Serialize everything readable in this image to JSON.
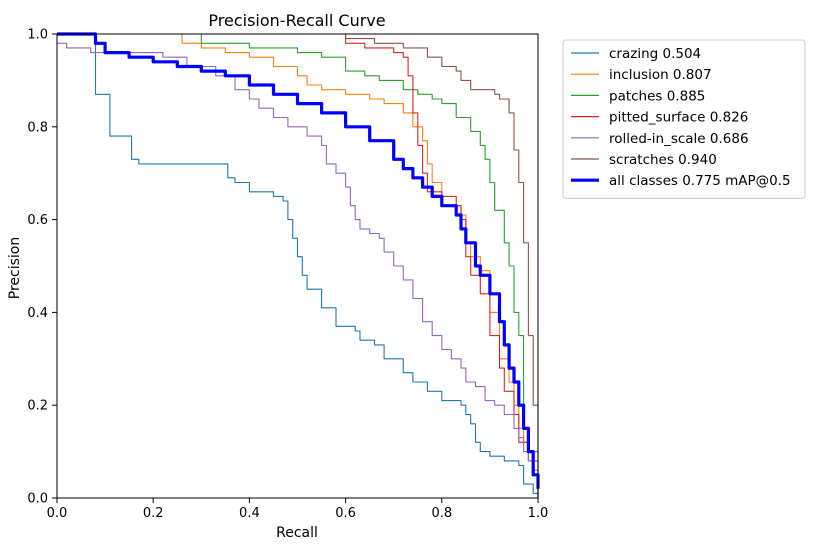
{
  "chart_data": {
    "type": "line",
    "title": "Precision-Recall Curve",
    "xlabel": "Recall",
    "ylabel": "Precision",
    "xlim": [
      0,
      1
    ],
    "ylim": [
      0,
      1
    ],
    "xticks": [
      "0.0",
      "0.2",
      "0.4",
      "0.6",
      "0.8",
      "1.0"
    ],
    "yticks": [
      "0.0",
      "0.2",
      "0.4",
      "0.6",
      "0.8",
      "1.0"
    ],
    "grid": false,
    "legend_position": "outside-top-right",
    "series": [
      {
        "name": "crazing",
        "legend": "crazing 0.504",
        "color": "#1f77b4",
        "bold": false,
        "points": [
          [
            0,
            1
          ],
          [
            0.07,
            1
          ],
          [
            0.08,
            0.87
          ],
          [
            0.1,
            0.87
          ],
          [
            0.11,
            0.78
          ],
          [
            0.15,
            0.78
          ],
          [
            0.155,
            0.73
          ],
          [
            0.17,
            0.72
          ],
          [
            0.25,
            0.72
          ],
          [
            0.35,
            0.72
          ],
          [
            0.355,
            0.69
          ],
          [
            0.37,
            0.68
          ],
          [
            0.4,
            0.66
          ],
          [
            0.45,
            0.65
          ],
          [
            0.47,
            0.64
          ],
          [
            0.48,
            0.6
          ],
          [
            0.49,
            0.56
          ],
          [
            0.5,
            0.52
          ],
          [
            0.51,
            0.48
          ],
          [
            0.52,
            0.45
          ],
          [
            0.55,
            0.41
          ],
          [
            0.58,
            0.37
          ],
          [
            0.6,
            0.37
          ],
          [
            0.62,
            0.36
          ],
          [
            0.63,
            0.34
          ],
          [
            0.66,
            0.33
          ],
          [
            0.68,
            0.3
          ],
          [
            0.7,
            0.3
          ],
          [
            0.72,
            0.27
          ],
          [
            0.74,
            0.25
          ],
          [
            0.77,
            0.23
          ],
          [
            0.8,
            0.21
          ],
          [
            0.84,
            0.2
          ],
          [
            0.85,
            0.18
          ],
          [
            0.86,
            0.16
          ],
          [
            0.87,
            0.12
          ],
          [
            0.88,
            0.1
          ],
          [
            0.9,
            0.09
          ],
          [
            0.92,
            0.09
          ],
          [
            0.93,
            0.08
          ],
          [
            0.96,
            0.07
          ],
          [
            0.97,
            0.03
          ],
          [
            0.99,
            0.01
          ],
          [
            1.0,
            0
          ]
        ]
      },
      {
        "name": "inclusion",
        "legend": "inclusion 0.807",
        "color": "#ff7f0e",
        "bold": false,
        "points": [
          [
            0.25,
            1
          ],
          [
            0.26,
            0.98
          ],
          [
            0.3,
            0.97
          ],
          [
            0.35,
            0.96
          ],
          [
            0.4,
            0.95
          ],
          [
            0.45,
            0.93
          ],
          [
            0.5,
            0.91
          ],
          [
            0.52,
            0.89
          ],
          [
            0.55,
            0.88
          ],
          [
            0.6,
            0.87
          ],
          [
            0.65,
            0.86
          ],
          [
            0.68,
            0.85
          ],
          [
            0.72,
            0.83
          ],
          [
            0.74,
            0.8
          ],
          [
            0.76,
            0.77
          ],
          [
            0.77,
            0.72
          ],
          [
            0.78,
            0.68
          ],
          [
            0.8,
            0.63
          ],
          [
            0.84,
            0.61
          ],
          [
            0.85,
            0.55
          ],
          [
            0.86,
            0.52
          ],
          [
            0.88,
            0.49
          ],
          [
            0.9,
            0.4
          ],
          [
            0.92,
            0.3
          ],
          [
            0.94,
            0.25
          ],
          [
            0.95,
            0.2
          ],
          [
            0.96,
            0.15
          ],
          [
            0.97,
            0.12
          ],
          [
            0.98,
            0.08
          ],
          [
            1.0,
            0
          ]
        ]
      },
      {
        "name": "patches",
        "legend": "patches 0.885",
        "color": "#2ca02c",
        "bold": false,
        "points": [
          [
            0.19,
            1
          ],
          [
            0.27,
            1
          ],
          [
            0.3,
            0.98
          ],
          [
            0.4,
            0.97
          ],
          [
            0.45,
            0.97
          ],
          [
            0.5,
            0.96
          ],
          [
            0.55,
            0.95
          ],
          [
            0.6,
            0.92
          ],
          [
            0.64,
            0.91
          ],
          [
            0.67,
            0.9
          ],
          [
            0.72,
            0.88
          ],
          [
            0.75,
            0.87
          ],
          [
            0.78,
            0.86
          ],
          [
            0.8,
            0.85
          ],
          [
            0.83,
            0.82
          ],
          [
            0.86,
            0.79
          ],
          [
            0.88,
            0.76
          ],
          [
            0.89,
            0.73
          ],
          [
            0.9,
            0.68
          ],
          [
            0.91,
            0.62
          ],
          [
            0.93,
            0.55
          ],
          [
            0.94,
            0.5
          ],
          [
            0.95,
            0.4
          ],
          [
            0.96,
            0.35
          ],
          [
            0.97,
            0.15
          ],
          [
            0.98,
            0.1
          ],
          [
            1.0,
            0
          ]
        ]
      },
      {
        "name": "pitted_surface",
        "legend": "pitted_surface 0.826",
        "color": "#d62728",
        "bold": false,
        "points": [
          [
            0.26,
            1
          ],
          [
            0.55,
            1
          ],
          [
            0.6,
            0.98
          ],
          [
            0.64,
            0.97
          ],
          [
            0.7,
            0.96
          ],
          [
            0.72,
            0.95
          ],
          [
            0.73,
            0.91
          ],
          [
            0.74,
            0.83
          ],
          [
            0.75,
            0.76
          ],
          [
            0.76,
            0.7
          ],
          [
            0.77,
            0.66
          ],
          [
            0.8,
            0.65
          ],
          [
            0.83,
            0.63
          ],
          [
            0.84,
            0.6
          ],
          [
            0.85,
            0.52
          ],
          [
            0.86,
            0.48
          ],
          [
            0.88,
            0.44
          ],
          [
            0.9,
            0.35
          ],
          [
            0.92,
            0.28
          ],
          [
            0.93,
            0.23
          ],
          [
            0.95,
            0.18
          ],
          [
            0.96,
            0.12
          ],
          [
            0.98,
            0.08
          ],
          [
            1.0,
            0
          ]
        ]
      },
      {
        "name": "rolled-in_scale",
        "legend": "rolled-in_scale 0.686",
        "color": "#9467bd",
        "bold": false,
        "points": [
          [
            0,
            0.98
          ],
          [
            0.02,
            0.97
          ],
          [
            0.06,
            0.97
          ],
          [
            0.07,
            0.96
          ],
          [
            0.12,
            0.96
          ],
          [
            0.2,
            0.96
          ],
          [
            0.22,
            0.95
          ],
          [
            0.27,
            0.93
          ],
          [
            0.33,
            0.91
          ],
          [
            0.37,
            0.88
          ],
          [
            0.4,
            0.86
          ],
          [
            0.42,
            0.84
          ],
          [
            0.45,
            0.82
          ],
          [
            0.48,
            0.8
          ],
          [
            0.52,
            0.78
          ],
          [
            0.55,
            0.76
          ],
          [
            0.56,
            0.72
          ],
          [
            0.58,
            0.7
          ],
          [
            0.6,
            0.67
          ],
          [
            0.61,
            0.63
          ],
          [
            0.62,
            0.6
          ],
          [
            0.63,
            0.58
          ],
          [
            0.65,
            0.57
          ],
          [
            0.67,
            0.56
          ],
          [
            0.68,
            0.53
          ],
          [
            0.7,
            0.5
          ],
          [
            0.72,
            0.47
          ],
          [
            0.74,
            0.43
          ],
          [
            0.76,
            0.38
          ],
          [
            0.78,
            0.35
          ],
          [
            0.8,
            0.32
          ],
          [
            0.82,
            0.3
          ],
          [
            0.84,
            0.28
          ],
          [
            0.85,
            0.25
          ],
          [
            0.87,
            0.24
          ],
          [
            0.89,
            0.21
          ],
          [
            0.91,
            0.2
          ],
          [
            0.93,
            0.18
          ],
          [
            0.95,
            0.15
          ],
          [
            0.96,
            0.13
          ],
          [
            0.97,
            0.1
          ],
          [
            0.98,
            0.08
          ],
          [
            0.99,
            0.06
          ],
          [
            1.0,
            0
          ]
        ]
      },
      {
        "name": "scratches",
        "legend": "scratches 0.940",
        "color": "#8c564b",
        "bold": false,
        "points": [
          [
            0.27,
            1
          ],
          [
            0.58,
            1
          ],
          [
            0.6,
            0.99
          ],
          [
            0.66,
            0.98
          ],
          [
            0.72,
            0.97
          ],
          [
            0.77,
            0.95
          ],
          [
            0.8,
            0.93
          ],
          [
            0.83,
            0.92
          ],
          [
            0.84,
            0.9
          ],
          [
            0.86,
            0.88
          ],
          [
            0.88,
            0.88
          ],
          [
            0.91,
            0.87
          ],
          [
            0.92,
            0.86
          ],
          [
            0.94,
            0.83
          ],
          [
            0.95,
            0.75
          ],
          [
            0.96,
            0.68
          ],
          [
            0.97,
            0.55
          ],
          [
            0.98,
            0.35
          ],
          [
            0.99,
            0.2
          ],
          [
            1.0,
            0
          ]
        ]
      },
      {
        "name": "all classes",
        "legend": "all classes 0.775 mAP@0.5",
        "color": "#0000ff",
        "bold": true,
        "points": [
          [
            0,
            1
          ],
          [
            0.08,
            0.98
          ],
          [
            0.1,
            0.96
          ],
          [
            0.15,
            0.95
          ],
          [
            0.2,
            0.94
          ],
          [
            0.25,
            0.93
          ],
          [
            0.3,
            0.92
          ],
          [
            0.35,
            0.91
          ],
          [
            0.4,
            0.89
          ],
          [
            0.45,
            0.87
          ],
          [
            0.5,
            0.85
          ],
          [
            0.55,
            0.83
          ],
          [
            0.6,
            0.8
          ],
          [
            0.65,
            0.77
          ],
          [
            0.7,
            0.73
          ],
          [
            0.72,
            0.71
          ],
          [
            0.74,
            0.69
          ],
          [
            0.76,
            0.67
          ],
          [
            0.78,
            0.65
          ],
          [
            0.8,
            0.63
          ],
          [
            0.83,
            0.61
          ],
          [
            0.84,
            0.58
          ],
          [
            0.85,
            0.55
          ],
          [
            0.87,
            0.5
          ],
          [
            0.88,
            0.48
          ],
          [
            0.9,
            0.44
          ],
          [
            0.92,
            0.38
          ],
          [
            0.93,
            0.33
          ],
          [
            0.94,
            0.28
          ],
          [
            0.95,
            0.25
          ],
          [
            0.96,
            0.2
          ],
          [
            0.97,
            0.15
          ],
          [
            0.98,
            0.1
          ],
          [
            0.99,
            0.05
          ],
          [
            1.0,
            0.02
          ]
        ]
      }
    ]
  }
}
